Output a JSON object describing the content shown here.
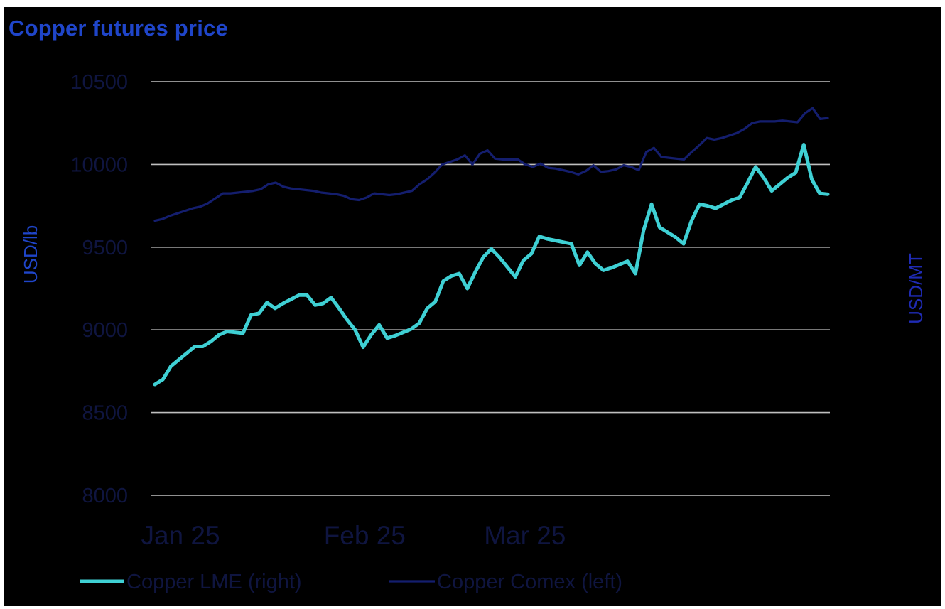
{
  "chart_data": {
    "type": "line",
    "title": "Copper futures price",
    "ylabel_left": "USD/lb",
    "ylabel_right": "USD/MT",
    "ylim": [
      8000,
      10500
    ],
    "yticks": [
      "10500",
      "10000",
      "9500",
      "9000",
      "8500",
      "8000"
    ],
    "xticks": [
      {
        "label": "Jan 25",
        "i": 0
      },
      {
        "label": "Feb 25",
        "i": 23
      },
      {
        "label": "Mar 25",
        "i": 43
      }
    ],
    "grid": true,
    "legend_position": "bottom",
    "series": [
      {
        "name": "Copper LME (right)",
        "color": "#3fd0d4",
        "values": [
          8670,
          8700,
          8780,
          8820,
          8860,
          8900,
          8900,
          8930,
          8970,
          8990,
          8985,
          8980,
          9090,
          9100,
          9165,
          9130,
          9160,
          9185,
          9210,
          9210,
          9150,
          9160,
          9195,
          9130,
          9060,
          9000,
          8895,
          8970,
          9030,
          8950,
          8965,
          8985,
          9005,
          9040,
          9130,
          9170,
          9295,
          9325,
          9340,
          9250,
          9350,
          9440,
          9490,
          9440,
          9380,
          9320,
          9420,
          9460,
          9565,
          9550,
          9540,
          9530,
          9520,
          9390,
          9470,
          9400,
          9360,
          9375,
          9395,
          9415,
          9340,
          9600,
          9760,
          9620,
          9590,
          9560,
          9520,
          9660,
          9760,
          9750,
          9735,
          9760,
          9785,
          9800,
          9890,
          9985,
          9920,
          9840,
          9880,
          9920,
          9950,
          10120,
          9910,
          9825,
          9820
        ]
      },
      {
        "name": "Copper Comex (left)",
        "color": "#141e6e",
        "values": [
          9660,
          9670,
          9690,
          9705,
          9720,
          9735,
          9745,
          9765,
          9795,
          9825,
          9825,
          9830,
          9835,
          9840,
          9850,
          9880,
          9890,
          9865,
          9855,
          9850,
          9845,
          9840,
          9830,
          9825,
          9820,
          9810,
          9790,
          9785,
          9800,
          9825,
          9820,
          9815,
          9820,
          9830,
          9840,
          9880,
          9910,
          9950,
          10000,
          10015,
          10030,
          10055,
          10000,
          10065,
          10085,
          10035,
          10030,
          10030,
          10030,
          10000,
          9985,
          10005,
          9980,
          9975,
          9965,
          9955,
          9940,
          9960,
          9995,
          9955,
          9960,
          9970,
          9995,
          9985,
          9965,
          10075,
          10100,
          10045,
          10040,
          10035,
          10030,
          10075,
          10115,
          10160,
          10150,
          10160,
          10175,
          10190,
          10215,
          10250,
          10260,
          10260,
          10260,
          10265,
          10260,
          10255,
          10310,
          10340,
          10275,
          10280
        ]
      }
    ]
  }
}
